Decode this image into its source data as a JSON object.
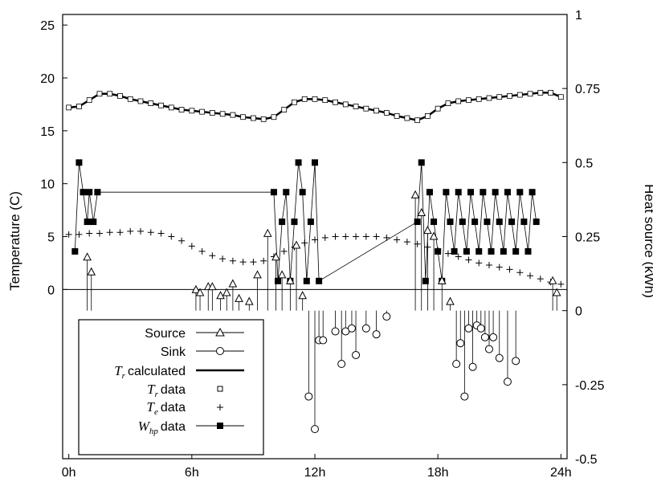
{
  "chart_data": {
    "type": "line",
    "xlabel": "",
    "ylabel_left": "Temperature (C)",
    "ylabel_right": "Heat source (kWh)",
    "x_range_hours": [
      -0.3,
      24.3
    ],
    "ylim_left": [
      -16,
      26
    ],
    "ylim_right": [
      -0.5,
      1
    ],
    "x_ticks": [
      {
        "value": 0,
        "label": "0h"
      },
      {
        "value": 6,
        "label": "6h"
      },
      {
        "value": 12,
        "label": "12h"
      },
      {
        "value": 18,
        "label": "18h"
      },
      {
        "value": 24,
        "label": "24h"
      }
    ],
    "y_ticks_left": [
      {
        "value": 0,
        "label": "0"
      },
      {
        "value": 5,
        "label": "5"
      },
      {
        "value": 10,
        "label": "10"
      },
      {
        "value": 15,
        "label": "15"
      },
      {
        "value": 20,
        "label": "20"
      },
      {
        "value": 25,
        "label": "25"
      }
    ],
    "y_ticks_right": [
      {
        "value": -0.5,
        "label": "-0.5"
      },
      {
        "value": -0.25,
        "label": "-0.25"
      },
      {
        "value": 0,
        "label": "0"
      },
      {
        "value": 0.25,
        "label": "0.25"
      },
      {
        "value": 0.5,
        "label": "0.5"
      },
      {
        "value": 0.75,
        "label": "0.75"
      },
      {
        "value": 1,
        "label": "1"
      }
    ],
    "legend_position": "bottom-left",
    "legend": [
      {
        "label": "Source",
        "marker": "triangle"
      },
      {
        "label": "Sink",
        "marker": "circle"
      },
      {
        "label": "calculated",
        "math": "T",
        "sub": "r",
        "marker": "thick-line"
      },
      {
        "label": "data",
        "math": "T",
        "sub": "r",
        "marker": "small-square"
      },
      {
        "label": "data",
        "math": "T",
        "sub": "e",
        "marker": "plus"
      },
      {
        "label": "data",
        "math": "W",
        "sub": "hp",
        "marker": "filled-square"
      }
    ],
    "series": [
      {
        "name": "Tr calculated",
        "axis": "left",
        "x": [
          0,
          0.5,
          1,
          1.5,
          2,
          2.5,
          3,
          3.5,
          4,
          4.5,
          5,
          5.5,
          6,
          6.5,
          7,
          7.5,
          8,
          8.5,
          9,
          9.5,
          10,
          10.5,
          11,
          11.5,
          12,
          12.5,
          13,
          13.5,
          14,
          14.5,
          15,
          15.5,
          16,
          16.5,
          17,
          17.5,
          18,
          18.5,
          19,
          19.5,
          20,
          20.5,
          21,
          21.5,
          22,
          22.5,
          23,
          23.5,
          24
        ],
        "y": [
          17.2,
          17.3,
          17.9,
          18.5,
          18.5,
          18.3,
          18.0,
          17.8,
          17.6,
          17.4,
          17.2,
          17.0,
          16.9,
          16.8,
          16.7,
          16.6,
          16.5,
          16.3,
          16.2,
          16.1,
          16.3,
          17.0,
          17.7,
          18.0,
          18.0,
          17.9,
          17.7,
          17.5,
          17.3,
          17.1,
          16.9,
          16.7,
          16.4,
          16.2,
          16.0,
          16.4,
          17.1,
          17.6,
          17.8,
          17.9,
          18.0,
          18.1,
          18.2,
          18.3,
          18.4,
          18.5,
          18.6,
          18.6,
          18.2
        ]
      },
      {
        "name": "Te data",
        "axis": "left",
        "x": [
          0,
          0.5,
          1,
          1.5,
          2,
          2.5,
          3,
          3.5,
          4,
          4.5,
          5,
          5.5,
          6,
          6.5,
          7,
          7.5,
          8,
          8.5,
          9,
          9.5,
          10,
          10.5,
          11,
          11.5,
          12,
          12.5,
          13,
          13.5,
          14,
          14.5,
          15,
          15.5,
          16,
          16.5,
          17,
          17.5,
          18,
          18.5,
          19,
          19.5,
          20,
          20.5,
          21,
          21.5,
          22,
          22.5,
          23,
          23.5,
          24
        ],
        "y": [
          5.2,
          5.2,
          5.3,
          5.3,
          5.4,
          5.4,
          5.5,
          5.5,
          5.4,
          5.3,
          5.0,
          4.6,
          4.1,
          3.6,
          3.2,
          2.9,
          2.7,
          2.6,
          2.6,
          2.7,
          3.1,
          3.6,
          4.0,
          4.4,
          4.7,
          4.9,
          5.0,
          5.0,
          5.0,
          5.0,
          5.0,
          4.9,
          4.7,
          4.5,
          4.3,
          4.0,
          3.7,
          3.4,
          3.1,
          2.8,
          2.5,
          2.3,
          2.1,
          1.9,
          1.6,
          1.3,
          1.0,
          0.7,
          0.5
        ]
      },
      {
        "name": "Source",
        "axis": "right",
        "x": [
          0.9,
          1.1,
          6.2,
          6.4,
          6.8,
          7.0,
          7.4,
          7.7,
          8.0,
          8.3,
          8.8,
          9.2,
          9.7,
          10.1,
          10.4,
          10.8,
          11.1,
          11.4,
          16.9,
          17.2,
          17.5,
          17.8,
          18.2,
          18.6,
          23.6,
          23.8
        ],
        "y": [
          0.18,
          0.13,
          0.07,
          0.06,
          0.08,
          0.08,
          0.05,
          0.06,
          0.09,
          0.04,
          0.03,
          0.12,
          0.26,
          0.18,
          0.12,
          0.1,
          0.22,
          0.05,
          0.39,
          0.33,
          0.27,
          0.25,
          0.1,
          0.03,
          0.1,
          0.06
        ]
      },
      {
        "name": "Sink",
        "axis": "right",
        "x": [
          11.7,
          12.0,
          12.2,
          12.4,
          13.0,
          13.3,
          13.5,
          13.8,
          14.0,
          14.5,
          15.0,
          15.5,
          18.9,
          19.1,
          19.3,
          19.5,
          19.7,
          19.9,
          20.1,
          20.3,
          20.5,
          20.7,
          21.0,
          21.4,
          21.8
        ],
        "y": [
          -0.29,
          -0.4,
          -0.1,
          -0.1,
          -0.07,
          -0.18,
          -0.07,
          -0.06,
          -0.15,
          -0.06,
          -0.08,
          -0.02,
          -0.18,
          -0.11,
          -0.29,
          -0.06,
          -0.19,
          -0.05,
          -0.06,
          -0.09,
          -0.13,
          -0.09,
          -0.16,
          -0.24,
          -0.17
        ]
      },
      {
        "name": "Whp data",
        "axis": "right",
        "x": [
          0.3,
          0.5,
          0.7,
          0.9,
          1.0,
          1.2,
          1.4,
          10.0,
          10.2,
          10.4,
          10.6,
          10.8,
          11.0,
          11.2,
          11.4,
          11.6,
          11.8,
          12.0,
          12.2,
          17.0,
          17.2,
          17.4,
          17.6,
          17.8,
          18.0,
          18.2,
          18.4,
          18.6,
          18.8,
          19.0,
          19.2,
          19.4,
          19.6,
          19.8,
          20.0,
          20.2,
          20.4,
          20.6,
          20.8,
          21.0,
          21.2,
          21.4,
          21.6,
          21.8,
          22.0,
          22.2,
          22.4,
          22.6,
          22.8
        ],
        "y": [
          0.2,
          0.5,
          0.4,
          0.3,
          0.4,
          0.3,
          0.4,
          0.4,
          0.1,
          0.3,
          0.4,
          0.1,
          0.3,
          0.5,
          0.4,
          0.1,
          0.3,
          0.5,
          0.1,
          0.3,
          0.5,
          0.1,
          0.4,
          0.3,
          0.2,
          0.1,
          0.4,
          0.3,
          0.2,
          0.4,
          0.3,
          0.2,
          0.4,
          0.3,
          0.2,
          0.4,
          0.3,
          0.2,
          0.4,
          0.3,
          0.2,
          0.4,
          0.3,
          0.2,
          0.4,
          0.3,
          0.2,
          0.4,
          0.3
        ]
      }
    ]
  }
}
